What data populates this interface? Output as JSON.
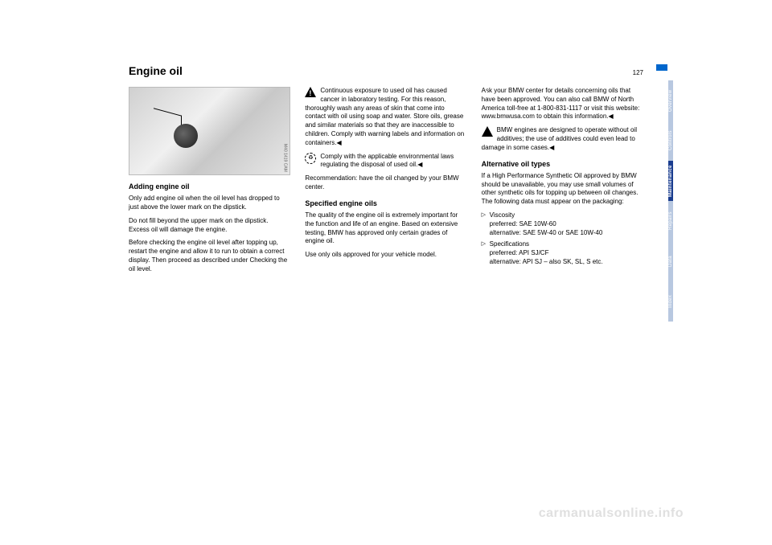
{
  "pageNumber": "127",
  "title": "Engine oil",
  "figure": {
    "code": "M40 1419 CAM"
  },
  "col1": {
    "sub1": "Adding engine oil",
    "p1": "Only add engine oil when the oil level has dropped to just above the lower mark on the dipstick.",
    "p2": "Do not fill beyond the upper mark on the dipstick. Excess oil will damage the engine.",
    "p3": "Before checking the engine oil level after topping up, restart the engine and allow it to run to obtain a correct display. Then proceed as described under Checking the oil level."
  },
  "col2": {
    "warn1": "Continuous exposure to used oil has caused cancer in laboratory testing. For this reason, thoroughly wash any areas of skin that come into contact with oil using soap and water. Store oils, grease and similar materials so that they are inaccessible to children. Comply with warning labels and information on containers.",
    "recycle1": "Comply with the applicable environmental laws regulating the disposal of used oil.",
    "p1": "Recommendation: have the oil changed by your BMW center.",
    "sub1": "Specified engine oils",
    "p2": "The quality of the engine oil is extremely important for the function and life of an engine. Based on extensive testing, BMW has approved only certain grades of engine oil.",
    "p3": "Use only oils approved for your vehicle model."
  },
  "col3": {
    "info1": "Ask your BMW center for details concerning oils that have been approved. You can also call BMW of North America toll-free at 1-800-831-1117 or visit this website: www.bmwusa.com to obtain this information.",
    "warn1": "BMW engines are designed to operate without oil additives; the use of additives could even lead to damage in some cases.",
    "sub1": "Alternative oil types",
    "p1": "If a High Performance Synthetic Oil approved by BMW should be unavailable, you may use small volumes of other synthetic oils for topping up between oil changes. The following data must appear on the packaging:",
    "li1a": "Viscosity",
    "li1b": "preferred: SAE 10W-60",
    "li1c": "alternative: SAE 5W-40 or SAE 10W-40",
    "li2a": "Specifications",
    "li2b": "preferred: API SJ/CF",
    "li2c": "alternative: API SJ – also SK, SL, S etc."
  },
  "tabs": {
    "t1": "Overview",
    "t2": "Controls",
    "t3": "Maintenance",
    "t4": "Repairs",
    "t5": "Data",
    "t6": "Index"
  },
  "watermark": "carmanualsonline.info",
  "endmark": "◀"
}
